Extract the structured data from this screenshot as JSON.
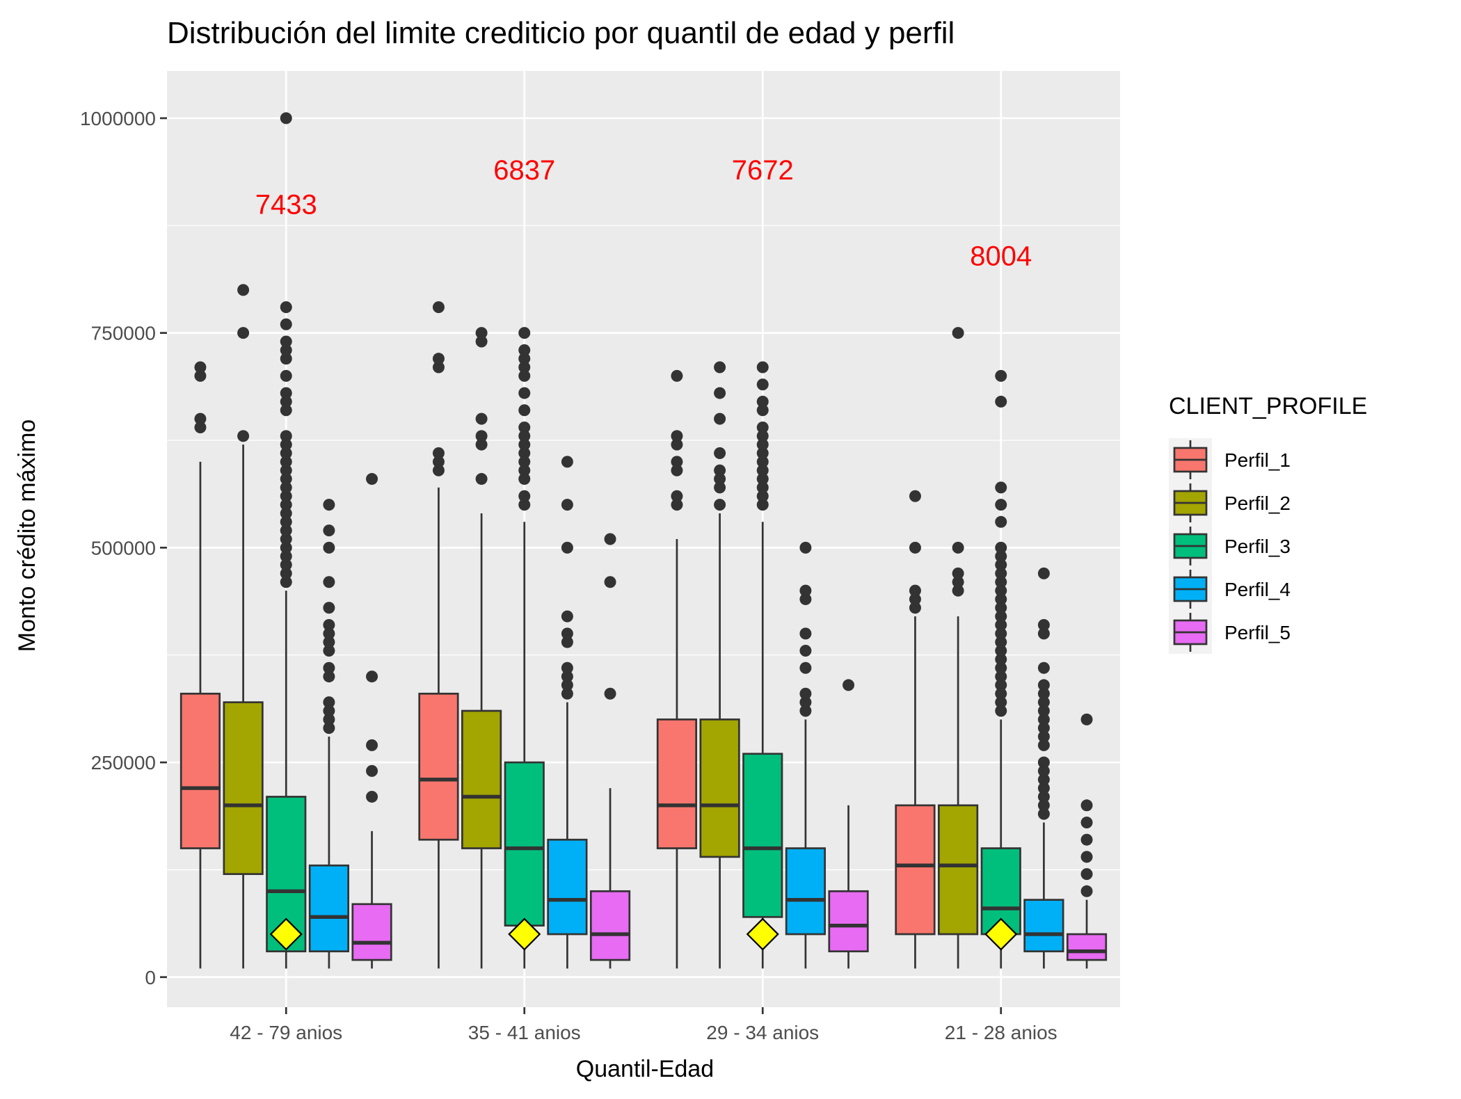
{
  "chart_data": {
    "type": "boxplot",
    "title": "Distribución del limite crediticio por quantil de edad y perfil",
    "xlabel": "Quantil-Edad",
    "ylabel": "Monto crédito máximo",
    "ylim": [
      -35000,
      1055000
    ],
    "yticks": [
      0,
      250000,
      500000,
      750000,
      1000000
    ],
    "ytick_labels": [
      "0",
      "250000",
      "500000",
      "750000",
      "1000000"
    ],
    "grid": true,
    "legend": {
      "title": "CLIENT_PROFILE",
      "position": "right",
      "items": [
        "Perfil_1",
        "Perfil_2",
        "Perfil_3",
        "Perfil_4",
        "Perfil_5"
      ]
    },
    "series_colors": [
      "#F8766D",
      "#A3A500",
      "#00BF7D",
      "#00B0F6",
      "#E76BF3"
    ],
    "categories": [
      "42 - 79 anios",
      "35 - 41 anios",
      "29 - 34 anios",
      "21 - 28 anios"
    ],
    "count_labels": [
      {
        "text": "7433",
        "y": 900000
      },
      {
        "text": "6837",
        "y": 940000
      },
      {
        "text": "7672",
        "y": 940000
      },
      {
        "text": "8004",
        "y": 840000
      }
    ],
    "count_color": "#FF0000",
    "diamond_value": 50000,
    "diamond_color": "#FFFF00",
    "groups": [
      {
        "category": "42 - 79 anios",
        "boxes": [
          {
            "series": "Perfil_1",
            "whisker_low": 10000,
            "q1": 150000,
            "median": 220000,
            "q3": 330000,
            "whisker_high": 600000,
            "outliers": [
              640000,
              650000,
              700000,
              710000
            ]
          },
          {
            "series": "Perfil_2",
            "whisker_low": 10000,
            "q1": 120000,
            "median": 200000,
            "q3": 320000,
            "whisker_high": 620000,
            "outliers": [
              630000,
              750000,
              800000
            ]
          },
          {
            "series": "Perfil_3",
            "whisker_low": 10000,
            "q1": 30000,
            "median": 100000,
            "q3": 210000,
            "whisker_high": 450000,
            "outliers": [
              460000,
              470000,
              480000,
              490000,
              500000,
              510000,
              520000,
              530000,
              540000,
              550000,
              560000,
              570000,
              580000,
              590000,
              600000,
              610000,
              620000,
              630000,
              660000,
              670000,
              680000,
              700000,
              720000,
              730000,
              740000,
              760000,
              780000,
              1000000
            ]
          },
          {
            "series": "Perfil_4",
            "whisker_low": 10000,
            "q1": 30000,
            "median": 70000,
            "q3": 130000,
            "whisker_high": 280000,
            "outliers": [
              290000,
              300000,
              310000,
              320000,
              350000,
              360000,
              380000,
              390000,
              400000,
              410000,
              430000,
              460000,
              500000,
              520000,
              550000
            ]
          },
          {
            "series": "Perfil_5",
            "whisker_low": 10000,
            "q1": 20000,
            "median": 40000,
            "q3": 85000,
            "whisker_high": 170000,
            "outliers": [
              210000,
              240000,
              270000,
              350000,
              580000
            ]
          }
        ]
      },
      {
        "category": "35 - 41 anios",
        "boxes": [
          {
            "series": "Perfil_1",
            "whisker_low": 10000,
            "q1": 160000,
            "median": 230000,
            "q3": 330000,
            "whisker_high": 570000,
            "outliers": [
              590000,
              600000,
              610000,
              710000,
              720000,
              780000
            ]
          },
          {
            "series": "Perfil_2",
            "whisker_low": 10000,
            "q1": 150000,
            "median": 210000,
            "q3": 310000,
            "whisker_high": 540000,
            "outliers": [
              580000,
              620000,
              630000,
              650000,
              740000,
              750000
            ]
          },
          {
            "series": "Perfil_3",
            "whisker_low": 10000,
            "q1": 60000,
            "median": 150000,
            "q3": 250000,
            "whisker_high": 530000,
            "outliers": [
              550000,
              560000,
              580000,
              590000,
              600000,
              610000,
              620000,
              630000,
              640000,
              660000,
              680000,
              700000,
              710000,
              720000,
              730000,
              750000
            ]
          },
          {
            "series": "Perfil_4",
            "whisker_low": 10000,
            "q1": 50000,
            "median": 90000,
            "q3": 160000,
            "whisker_high": 320000,
            "outliers": [
              330000,
              340000,
              350000,
              360000,
              390000,
              400000,
              420000,
              500000,
              550000,
              600000
            ]
          },
          {
            "series": "Perfil_5",
            "whisker_low": 10000,
            "q1": 20000,
            "median": 50000,
            "q3": 100000,
            "whisker_high": 220000,
            "outliers": [
              330000,
              460000,
              510000
            ]
          }
        ]
      },
      {
        "category": "29 - 34 anios",
        "boxes": [
          {
            "series": "Perfil_1",
            "whisker_low": 10000,
            "q1": 150000,
            "median": 200000,
            "q3": 300000,
            "whisker_high": 510000,
            "outliers": [
              550000,
              560000,
              590000,
              600000,
              620000,
              630000,
              700000
            ]
          },
          {
            "series": "Perfil_2",
            "whisker_low": 10000,
            "q1": 140000,
            "median": 200000,
            "q3": 300000,
            "whisker_high": 540000,
            "outliers": [
              550000,
              570000,
              580000,
              590000,
              610000,
              650000,
              680000,
              710000
            ]
          },
          {
            "series": "Perfil_3",
            "whisker_low": 10000,
            "q1": 70000,
            "median": 150000,
            "q3": 260000,
            "whisker_high": 530000,
            "outliers": [
              550000,
              560000,
              570000,
              580000,
              590000,
              600000,
              610000,
              620000,
              630000,
              640000,
              660000,
              670000,
              690000,
              710000
            ]
          },
          {
            "series": "Perfil_4",
            "whisker_low": 10000,
            "q1": 50000,
            "median": 90000,
            "q3": 150000,
            "whisker_high": 300000,
            "outliers": [
              310000,
              320000,
              330000,
              360000,
              380000,
              400000,
              440000,
              450000,
              500000
            ]
          },
          {
            "series": "Perfil_5",
            "whisker_low": 10000,
            "q1": 30000,
            "median": 60000,
            "q3": 100000,
            "whisker_high": 200000,
            "outliers": [
              340000
            ]
          }
        ]
      },
      {
        "category": "21 - 28 anios",
        "boxes": [
          {
            "series": "Perfil_1",
            "whisker_low": 10000,
            "q1": 50000,
            "median": 130000,
            "q3": 200000,
            "whisker_high": 420000,
            "outliers": [
              430000,
              440000,
              450000,
              500000,
              560000
            ]
          },
          {
            "series": "Perfil_2",
            "whisker_low": 10000,
            "q1": 50000,
            "median": 130000,
            "q3": 200000,
            "whisker_high": 420000,
            "outliers": [
              450000,
              460000,
              470000,
              500000,
              750000
            ]
          },
          {
            "series": "Perfil_3",
            "whisker_low": 10000,
            "q1": 50000,
            "median": 80000,
            "q3": 150000,
            "whisker_high": 300000,
            "outliers": [
              310000,
              320000,
              330000,
              340000,
              350000,
              360000,
              370000,
              380000,
              390000,
              400000,
              410000,
              420000,
              430000,
              440000,
              450000,
              460000,
              470000,
              480000,
              490000,
              500000,
              530000,
              550000,
              570000,
              670000,
              700000
            ]
          },
          {
            "series": "Perfil_4",
            "whisker_low": 10000,
            "q1": 30000,
            "median": 50000,
            "q3": 90000,
            "whisker_high": 180000,
            "outliers": [
              190000,
              200000,
              210000,
              220000,
              230000,
              240000,
              250000,
              270000,
              280000,
              290000,
              300000,
              310000,
              320000,
              330000,
              340000,
              360000,
              400000,
              410000,
              470000
            ]
          },
          {
            "series": "Perfil_5",
            "whisker_low": 10000,
            "q1": 20000,
            "median": 30000,
            "q3": 50000,
            "whisker_high": 90000,
            "outliers": [
              100000,
              120000,
              140000,
              160000,
              180000,
              200000,
              300000
            ]
          }
        ]
      }
    ]
  }
}
